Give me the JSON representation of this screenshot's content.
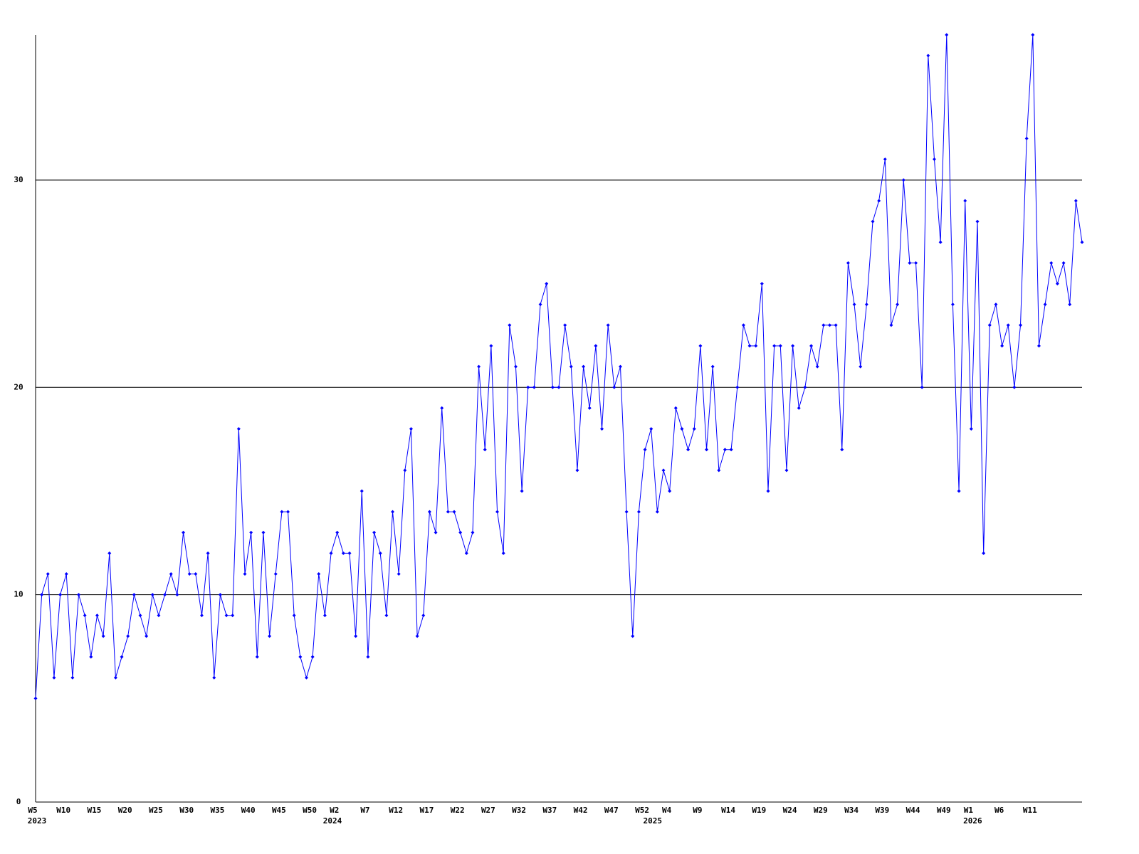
{
  "chart_data": {
    "type": "line",
    "categories": [
      "W5",
      null,
      null,
      null,
      null,
      "W10",
      null,
      null,
      null,
      null,
      "W15",
      null,
      null,
      null,
      null,
      "W20",
      null,
      null,
      null,
      null,
      "W25",
      null,
      null,
      null,
      null,
      "W30",
      null,
      null,
      null,
      null,
      "W35",
      null,
      null,
      null,
      null,
      "W40",
      null,
      null,
      null,
      null,
      "W45",
      null,
      null,
      null,
      null,
      "W50",
      null,
      null,
      null,
      "W2",
      null,
      null,
      null,
      null,
      "W7",
      null,
      null,
      null,
      null,
      "W12",
      null,
      null,
      null,
      null,
      "W17",
      null,
      null,
      null,
      null,
      "W22",
      null,
      null,
      null,
      null,
      "W27",
      null,
      null,
      null,
      null,
      "W32",
      null,
      null,
      null,
      null,
      "W37",
      null,
      null,
      null,
      null,
      "W42",
      null,
      null,
      null,
      null,
      "W47",
      null,
      null,
      null,
      null,
      "W52",
      null,
      null,
      null,
      "W4",
      null,
      null,
      null,
      null,
      "W9",
      null,
      null,
      null,
      null,
      "W14",
      null,
      null,
      null,
      null,
      "W19",
      null,
      null,
      null,
      null,
      "W24",
      null,
      null,
      null,
      null,
      "W29",
      null,
      null,
      null,
      null,
      "W34",
      null,
      null,
      null,
      null,
      "W39",
      null,
      null,
      null,
      null,
      "W44",
      null,
      null,
      null,
      null,
      "W49",
      null,
      null,
      null,
      "W1",
      null,
      null,
      null,
      null,
      "W6",
      null,
      null,
      null,
      null,
      "W11",
      null,
      null,
      null,
      null,
      null,
      null,
      null,
      null
    ],
    "category_years": [
      "2023",
      null,
      null,
      null,
      null,
      null,
      null,
      null,
      null,
      null,
      null,
      null,
      null,
      null,
      null,
      null,
      null,
      null,
      null,
      null,
      null,
      null,
      null,
      null,
      null,
      null,
      null,
      null,
      null,
      null,
      null,
      null,
      null,
      null,
      null,
      null,
      null,
      null,
      null,
      null,
      null,
      null,
      null,
      null,
      null,
      null,
      null,
      null,
      "2024",
      null,
      null,
      null,
      null,
      null,
      null,
      null,
      null,
      null,
      null,
      null,
      null,
      null,
      null,
      null,
      null,
      null,
      null,
      null,
      null,
      null,
      null,
      null,
      null,
      null,
      null,
      null,
      null,
      null,
      null,
      null,
      null,
      null,
      null,
      null,
      null,
      null,
      null,
      null,
      null,
      null,
      null,
      null,
      null,
      null,
      null,
      null,
      null,
      null,
      null,
      null,
      "2025",
      null,
      null,
      null,
      null,
      null,
      null,
      null,
      null,
      null,
      null,
      null,
      null,
      null,
      null,
      null,
      null,
      null,
      null,
      null,
      null,
      null,
      null,
      null,
      null,
      null,
      null,
      null,
      null,
      null,
      null,
      null,
      null,
      null,
      null,
      null,
      null,
      null,
      null,
      null,
      null,
      null,
      null,
      null,
      null,
      null,
      null,
      null,
      null,
      null,
      null,
      null,
      "2026",
      null,
      null,
      null,
      null,
      null,
      null,
      null,
      null,
      null,
      null,
      null,
      null,
      null,
      null,
      null,
      null,
      null,
      null
    ],
    "values": [
      5,
      10,
      11,
      6,
      10,
      11,
      6,
      10,
      9,
      7,
      9,
      8,
      12,
      6,
      7,
      8,
      10,
      9,
      8,
      10,
      9,
      10,
      11,
      10,
      13,
      11,
      11,
      9,
      12,
      6,
      10,
      9,
      9,
      18,
      11,
      13,
      7,
      13,
      8,
      11,
      14,
      14,
      9,
      7,
      6,
      7,
      11,
      9,
      12,
      13,
      12,
      12,
      8,
      15,
      7,
      13,
      12,
      9,
      14,
      11,
      16,
      18,
      8,
      9,
      14,
      13,
      19,
      14,
      14,
      13,
      12,
      13,
      21,
      17,
      22,
      14,
      12,
      23,
      21,
      15,
      20,
      20,
      24,
      25,
      20,
      20,
      23,
      21,
      16,
      21,
      19,
      22,
      18,
      23,
      20,
      21,
      14,
      8,
      14,
      17,
      18,
      14,
      16,
      15,
      19,
      18,
      17,
      18,
      22,
      17,
      21,
      16,
      17,
      17,
      20,
      23,
      22,
      22,
      25,
      15,
      22,
      22,
      16,
      22,
      19,
      20,
      22,
      21,
      23,
      23,
      23,
      17,
      26,
      24,
      21,
      24,
      28,
      29,
      31,
      23,
      24,
      30,
      26,
      26,
      20,
      36,
      31,
      27,
      37,
      24,
      15,
      29,
      18,
      28,
      12,
      23,
      24,
      22,
      23,
      20,
      23,
      32,
      37,
      22,
      24,
      26,
      25,
      26,
      24,
      29,
      27
    ],
    "color": "#0000ff",
    "ylim": [
      0,
      37
    ],
    "yticks": [
      0,
      10,
      20,
      30
    ],
    "grid": true
  }
}
